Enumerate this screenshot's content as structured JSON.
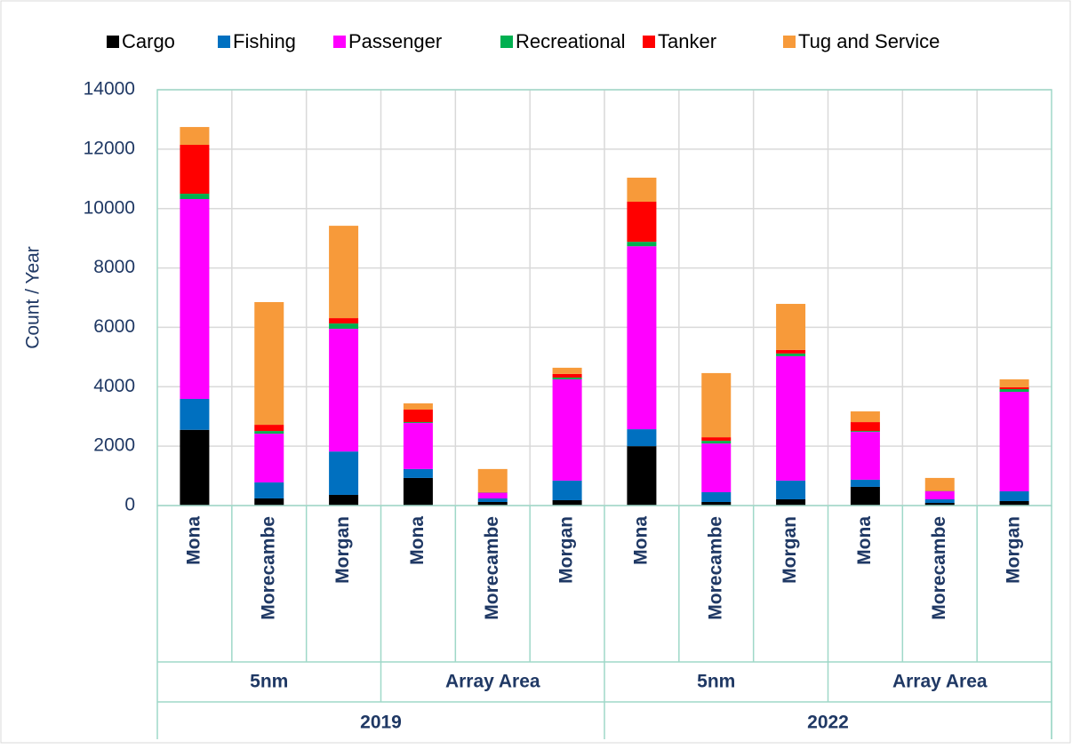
{
  "chart_data": {
    "type": "stacked_bar",
    "ylabel": "Count / Year",
    "ylim": [
      0,
      14000
    ],
    "yticks": [
      0,
      2000,
      4000,
      6000,
      8000,
      10000,
      12000,
      14000
    ],
    "grid": true,
    "legend": "top",
    "category_groups": [
      {
        "name": "2019",
        "groups": [
          {
            "name": "5nm",
            "categories": [
              "Mona",
              "Morecambe",
              "Morgan"
            ]
          },
          {
            "name": "Array Area",
            "categories": [
              "Mona",
              "Morecambe",
              "Morgan"
            ]
          }
        ]
      },
      {
        "name": "2022",
        "groups": [
          {
            "name": "5nm",
            "categories": [
              "Mona",
              "Morecambe",
              "Morgan"
            ]
          },
          {
            "name": "Array Area",
            "categories": [
              "Mona",
              "Morecambe",
              "Morgan"
            ]
          }
        ]
      }
    ],
    "series": [
      {
        "name": "Cargo",
        "color": "#000000",
        "values": [
          2550,
          240,
          360,
          930,
          120,
          180,
          2000,
          120,
          210,
          630,
          90,
          150
        ]
      },
      {
        "name": "Fishing",
        "color": "#0070c0",
        "values": [
          1040,
          540,
          1460,
          300,
          120,
          660,
          570,
          330,
          630,
          240,
          120,
          330
        ]
      },
      {
        "name": "Passenger",
        "color": "#ff00ff",
        "values": [
          6730,
          1640,
          4130,
          1550,
          190,
          3410,
          6160,
          1640,
          4190,
          1610,
          270,
          3350
        ]
      },
      {
        "name": "Recreational",
        "color": "#00b050",
        "values": [
          180,
          90,
          180,
          30,
          10,
          60,
          150,
          90,
          90,
          30,
          10,
          90
        ]
      },
      {
        "name": "Tanker",
        "color": "#ff0000",
        "values": [
          1645,
          210,
          180,
          420,
          10,
          120,
          1350,
          120,
          120,
          300,
          10,
          60
        ]
      },
      {
        "name": "Tug and Service",
        "color": "#f79a3a",
        "values": [
          600,
          4130,
          3110,
          210,
          780,
          210,
          810,
          2160,
          1550,
          360,
          430,
          270
        ]
      }
    ]
  }
}
